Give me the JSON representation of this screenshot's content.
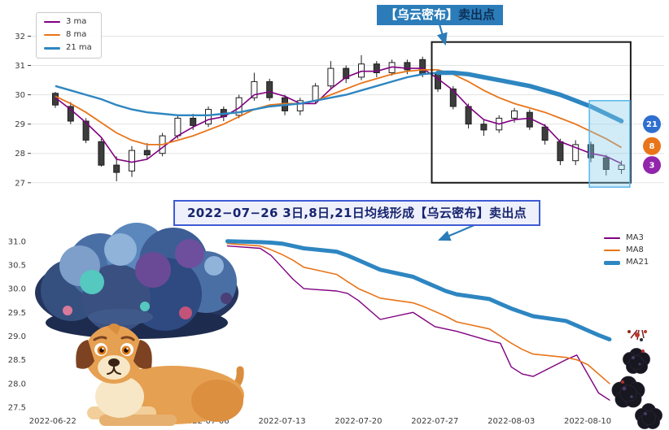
{
  "colors": {
    "ma3": "#800080",
    "ma8": "#e8751a",
    "ma21": "#2e86c1",
    "candle_up": "#ffffff",
    "candle_down": "#3d3d3d",
    "candle_edge": "#1f1f1f",
    "grid": "#e3e3e3",
    "axis_text": "#3a3a3a",
    "annotation_box": "#1b1b1b",
    "sell_zone_border": "#58b7ec",
    "sell_zone_fill": "rgba(135,206,235,0.38)",
    "arrow": "#2b7cb9",
    "callout_bg": "#2b7cb9",
    "callout_text": "#ffffff",
    "callout_text2": "#0e2f55",
    "banner_bg": "#eef0fb",
    "banner_border": "#3f5bd5",
    "banner_text": "#17246f"
  },
  "callout": {
    "highlight": "【乌云密布】",
    "rest": "卖出点"
  },
  "banner": {
    "text": "2022−07−26 3日,8日,21日均线形成【乌云密布】卖出点"
  },
  "chart_data": [
    {
      "type": "candlestick",
      "title": "",
      "ylabel": "",
      "ylim": [
        26.8,
        32.9
      ],
      "yticks": [
        27,
        28,
        29,
        30,
        31,
        32
      ],
      "grid": "horizontal",
      "legend_position": "upper-left",
      "legend": [
        {
          "label": "3 ma",
          "color": "#800080",
          "width": 2
        },
        {
          "label": "8 ma",
          "color": "#e8751a",
          "width": 2
        },
        {
          "label": "21 ma",
          "color": "#2e86c1",
          "width": 3
        }
      ],
      "dates": [
        "2022-06-22",
        "2022-06-23",
        "2022-06-24",
        "2022-06-27",
        "2022-06-28",
        "2022-06-29",
        "2022-06-30",
        "2022-07-01",
        "2022-07-04",
        "2022-07-05",
        "2022-07-06",
        "2022-07-07",
        "2022-07-08",
        "2022-07-11",
        "2022-07-12",
        "2022-07-13",
        "2022-07-14",
        "2022-07-15",
        "2022-07-18",
        "2022-07-19",
        "2022-07-20",
        "2022-07-21",
        "2022-07-22",
        "2022-07-25",
        "2022-07-26",
        "2022-07-27",
        "2022-07-28",
        "2022-07-29",
        "2022-08-01",
        "2022-08-02",
        "2022-08-03",
        "2022-08-04",
        "2022-08-05",
        "2022-08-08",
        "2022-08-09",
        "2022-08-10",
        "2022-08-11",
        "2022-08-12"
      ],
      "candles_ohlc": [
        [
          30.05,
          30.1,
          29.55,
          29.65
        ],
        [
          29.6,
          29.75,
          29.0,
          29.1
        ],
        [
          29.1,
          29.2,
          28.35,
          28.45
        ],
        [
          28.4,
          28.5,
          27.55,
          27.6
        ],
        [
          27.6,
          27.9,
          27.05,
          27.35
        ],
        [
          27.4,
          28.25,
          27.2,
          28.1
        ],
        [
          28.1,
          28.35,
          27.8,
          27.95
        ],
        [
          28.0,
          28.7,
          27.9,
          28.6
        ],
        [
          28.6,
          29.3,
          28.5,
          29.2
        ],
        [
          29.2,
          29.35,
          28.8,
          28.95
        ],
        [
          29.0,
          29.6,
          28.9,
          29.5
        ],
        [
          29.5,
          29.6,
          29.1,
          29.25
        ],
        [
          29.3,
          30.0,
          29.2,
          29.9
        ],
        [
          29.9,
          30.75,
          29.8,
          30.45
        ],
        [
          30.45,
          30.55,
          29.8,
          29.9
        ],
        [
          29.9,
          30.0,
          29.3,
          29.45
        ],
        [
          29.45,
          29.9,
          29.3,
          29.8
        ],
        [
          29.8,
          30.4,
          29.7,
          30.3
        ],
        [
          30.3,
          31.15,
          30.2,
          30.9
        ],
        [
          30.9,
          31.0,
          30.4,
          30.55
        ],
        [
          30.6,
          31.35,
          30.5,
          31.05
        ],
        [
          31.05,
          31.15,
          30.6,
          30.75
        ],
        [
          30.75,
          31.2,
          30.65,
          31.1
        ],
        [
          31.1,
          31.2,
          30.7,
          30.85
        ],
        [
          31.2,
          31.3,
          30.6,
          30.7
        ],
        [
          30.7,
          30.8,
          30.1,
          30.2
        ],
        [
          30.2,
          30.3,
          29.5,
          29.6
        ],
        [
          29.6,
          29.7,
          28.85,
          29.0
        ],
        [
          29.0,
          29.15,
          28.6,
          28.8
        ],
        [
          28.8,
          29.3,
          28.7,
          29.2
        ],
        [
          29.2,
          29.55,
          29.05,
          29.45
        ],
        [
          29.4,
          29.5,
          28.8,
          28.9
        ],
        [
          28.9,
          29.0,
          28.3,
          28.45
        ],
        [
          28.4,
          28.5,
          27.6,
          27.75
        ],
        [
          27.75,
          28.45,
          27.6,
          28.3
        ],
        [
          28.3,
          28.4,
          27.7,
          27.85
        ],
        [
          27.85,
          27.95,
          27.25,
          27.45
        ],
        [
          27.45,
          27.75,
          27.3,
          27.6
        ]
      ],
      "ma3": [
        29.9,
        29.5,
        29.05,
        28.55,
        27.8,
        27.7,
        27.8,
        28.2,
        28.6,
        28.9,
        29.15,
        29.25,
        29.55,
        30.0,
        30.1,
        29.95,
        29.7,
        29.7,
        30.2,
        30.6,
        30.8,
        30.8,
        30.95,
        30.9,
        30.9,
        30.55,
        30.15,
        29.6,
        29.15,
        29.0,
        29.15,
        29.2,
        28.95,
        28.4,
        28.2,
        28.0,
        27.9,
        27.65
      ],
      "ma8": [
        29.95,
        29.7,
        29.4,
        29.05,
        28.7,
        28.45,
        28.3,
        28.3,
        28.45,
        28.6,
        28.8,
        29.0,
        29.25,
        29.5,
        29.65,
        29.7,
        29.7,
        29.8,
        30.0,
        30.2,
        30.4,
        30.55,
        30.7,
        30.8,
        30.85,
        30.85,
        30.7,
        30.45,
        30.15,
        29.9,
        29.7,
        29.55,
        29.4,
        29.2,
        29.0,
        28.75,
        28.5,
        28.2
      ],
      "ma21": [
        30.3,
        30.15,
        30.0,
        29.85,
        29.65,
        29.5,
        29.4,
        29.35,
        29.3,
        29.3,
        29.3,
        29.35,
        29.4,
        29.5,
        29.6,
        29.65,
        29.7,
        29.8,
        29.9,
        30.0,
        30.15,
        30.3,
        30.45,
        30.6,
        30.7,
        30.75,
        30.75,
        30.7,
        30.6,
        30.5,
        30.4,
        30.3,
        30.15,
        30.0,
        29.8,
        29.6,
        29.35,
        29.1
      ],
      "ma21_thick_from_index": 25,
      "annotations": {
        "pattern_region_box": {
          "i0": 24.6,
          "i1": 37.6,
          "v0": 27.0,
          "v1": 31.8
        },
        "sell_zone_box": {
          "i0": 34.9,
          "i1": 37.55,
          "v0": 26.85,
          "v1": 29.8
        }
      },
      "badges": [
        {
          "label": "21",
          "color": "#2e6fd0",
          "value": 29.0
        },
        {
          "label": "8",
          "color": "#e8751a",
          "value": 28.25
        },
        {
          "label": "3",
          "color": "#9125ac",
          "value": 27.6
        }
      ]
    },
    {
      "type": "line",
      "title": "",
      "ylabel": "",
      "ylim": [
        27.38,
        31.15
      ],
      "yticks": [
        27.5,
        28.0,
        28.5,
        29.0,
        29.5,
        30.0,
        30.5,
        31.0
      ],
      "xticks": [
        "2022-06-22",
        "2022-06-29",
        "2022-07-06",
        "2022-07-13",
        "2022-07-20",
        "2022-07-27",
        "2022-08-03",
        "2022-08-10"
      ],
      "x_domain": [
        "2022-06-20",
        "2022-08-17"
      ],
      "grid": "off",
      "legend_position": "right",
      "legend": [
        {
          "label": "MA3",
          "color": "#800080",
          "width": 1.5
        },
        {
          "label": "MA8",
          "color": "#e8751a",
          "width": 1.5
        },
        {
          "label": "MA21",
          "color": "#2e86c1",
          "width": 5
        }
      ],
      "dates": [
        "2022-07-08",
        "2022-07-11",
        "2022-07-12",
        "2022-07-13",
        "2022-07-14",
        "2022-07-15",
        "2022-07-18",
        "2022-07-19",
        "2022-07-20",
        "2022-07-21",
        "2022-07-22",
        "2022-07-25",
        "2022-07-26",
        "2022-07-27",
        "2022-07-28",
        "2022-07-29",
        "2022-08-01",
        "2022-08-02",
        "2022-08-03",
        "2022-08-04",
        "2022-08-05",
        "2022-08-08",
        "2022-08-09",
        "2022-08-10",
        "2022-08-11",
        "2022-08-12"
      ],
      "series": [
        {
          "name": "MA3",
          "color": "#800080",
          "width": 1.4,
          "values": [
            30.9,
            30.85,
            30.7,
            30.45,
            30.2,
            30.0,
            29.95,
            29.9,
            29.75,
            29.55,
            29.35,
            29.5,
            29.35,
            29.2,
            29.15,
            29.1,
            28.9,
            28.85,
            28.35,
            28.2,
            28.15,
            28.5,
            28.6,
            28.2,
            27.8,
            27.65
          ]
        },
        {
          "name": "MA8",
          "color": "#e8751a",
          "width": 1.6,
          "values": [
            30.95,
            30.9,
            30.82,
            30.72,
            30.6,
            30.45,
            30.3,
            30.15,
            30.0,
            29.9,
            29.8,
            29.7,
            29.62,
            29.52,
            29.42,
            29.3,
            29.15,
            29.0,
            28.85,
            28.72,
            28.62,
            28.55,
            28.5,
            28.4,
            28.2,
            28.0
          ]
        },
        {
          "name": "MA21",
          "color": "#2e86c1",
          "width": 5,
          "values": [
            31.0,
            30.98,
            30.97,
            30.95,
            30.9,
            30.85,
            30.78,
            30.7,
            30.6,
            30.5,
            30.4,
            30.25,
            30.15,
            30.05,
            29.95,
            29.88,
            29.78,
            29.68,
            29.58,
            29.5,
            29.42,
            29.32,
            29.22,
            29.12,
            29.02,
            28.93
          ]
        }
      ]
    }
  ]
}
